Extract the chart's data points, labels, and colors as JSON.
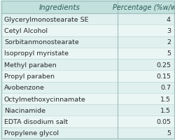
{
  "title_col1": "Ingredients",
  "title_col2": "Percentage (%w/w)",
  "rows": [
    [
      "Glycerylmonostearate SE",
      "4"
    ],
    [
      "Cetyl Alcohol",
      "3"
    ],
    [
      "Sorbitanmonostearate",
      "2"
    ],
    [
      "Isopropyl myristate",
      "5"
    ],
    [
      "Methyl paraben",
      "0.25"
    ],
    [
      "Propyl paraben",
      "0.15"
    ],
    [
      "Avobenzone",
      "0.7"
    ],
    [
      "Octylmethoxycinnamate",
      "1.5"
    ],
    [
      "Niacinamide",
      "1.5"
    ],
    [
      "EDTA disodium salt",
      "0.05"
    ],
    [
      "Propylene glycol",
      "5"
    ]
  ],
  "bg_color": "#dff0ee",
  "header_bg": "#c2e0dc",
  "row_bg_even": "#dff0ee",
  "row_bg_odd": "#eaf6f4",
  "text_color": "#2a2a2a",
  "header_text_color": "#2a5a56",
  "border_color": "#9bbebb",
  "font_size": 6.8,
  "header_font_size": 7.5
}
